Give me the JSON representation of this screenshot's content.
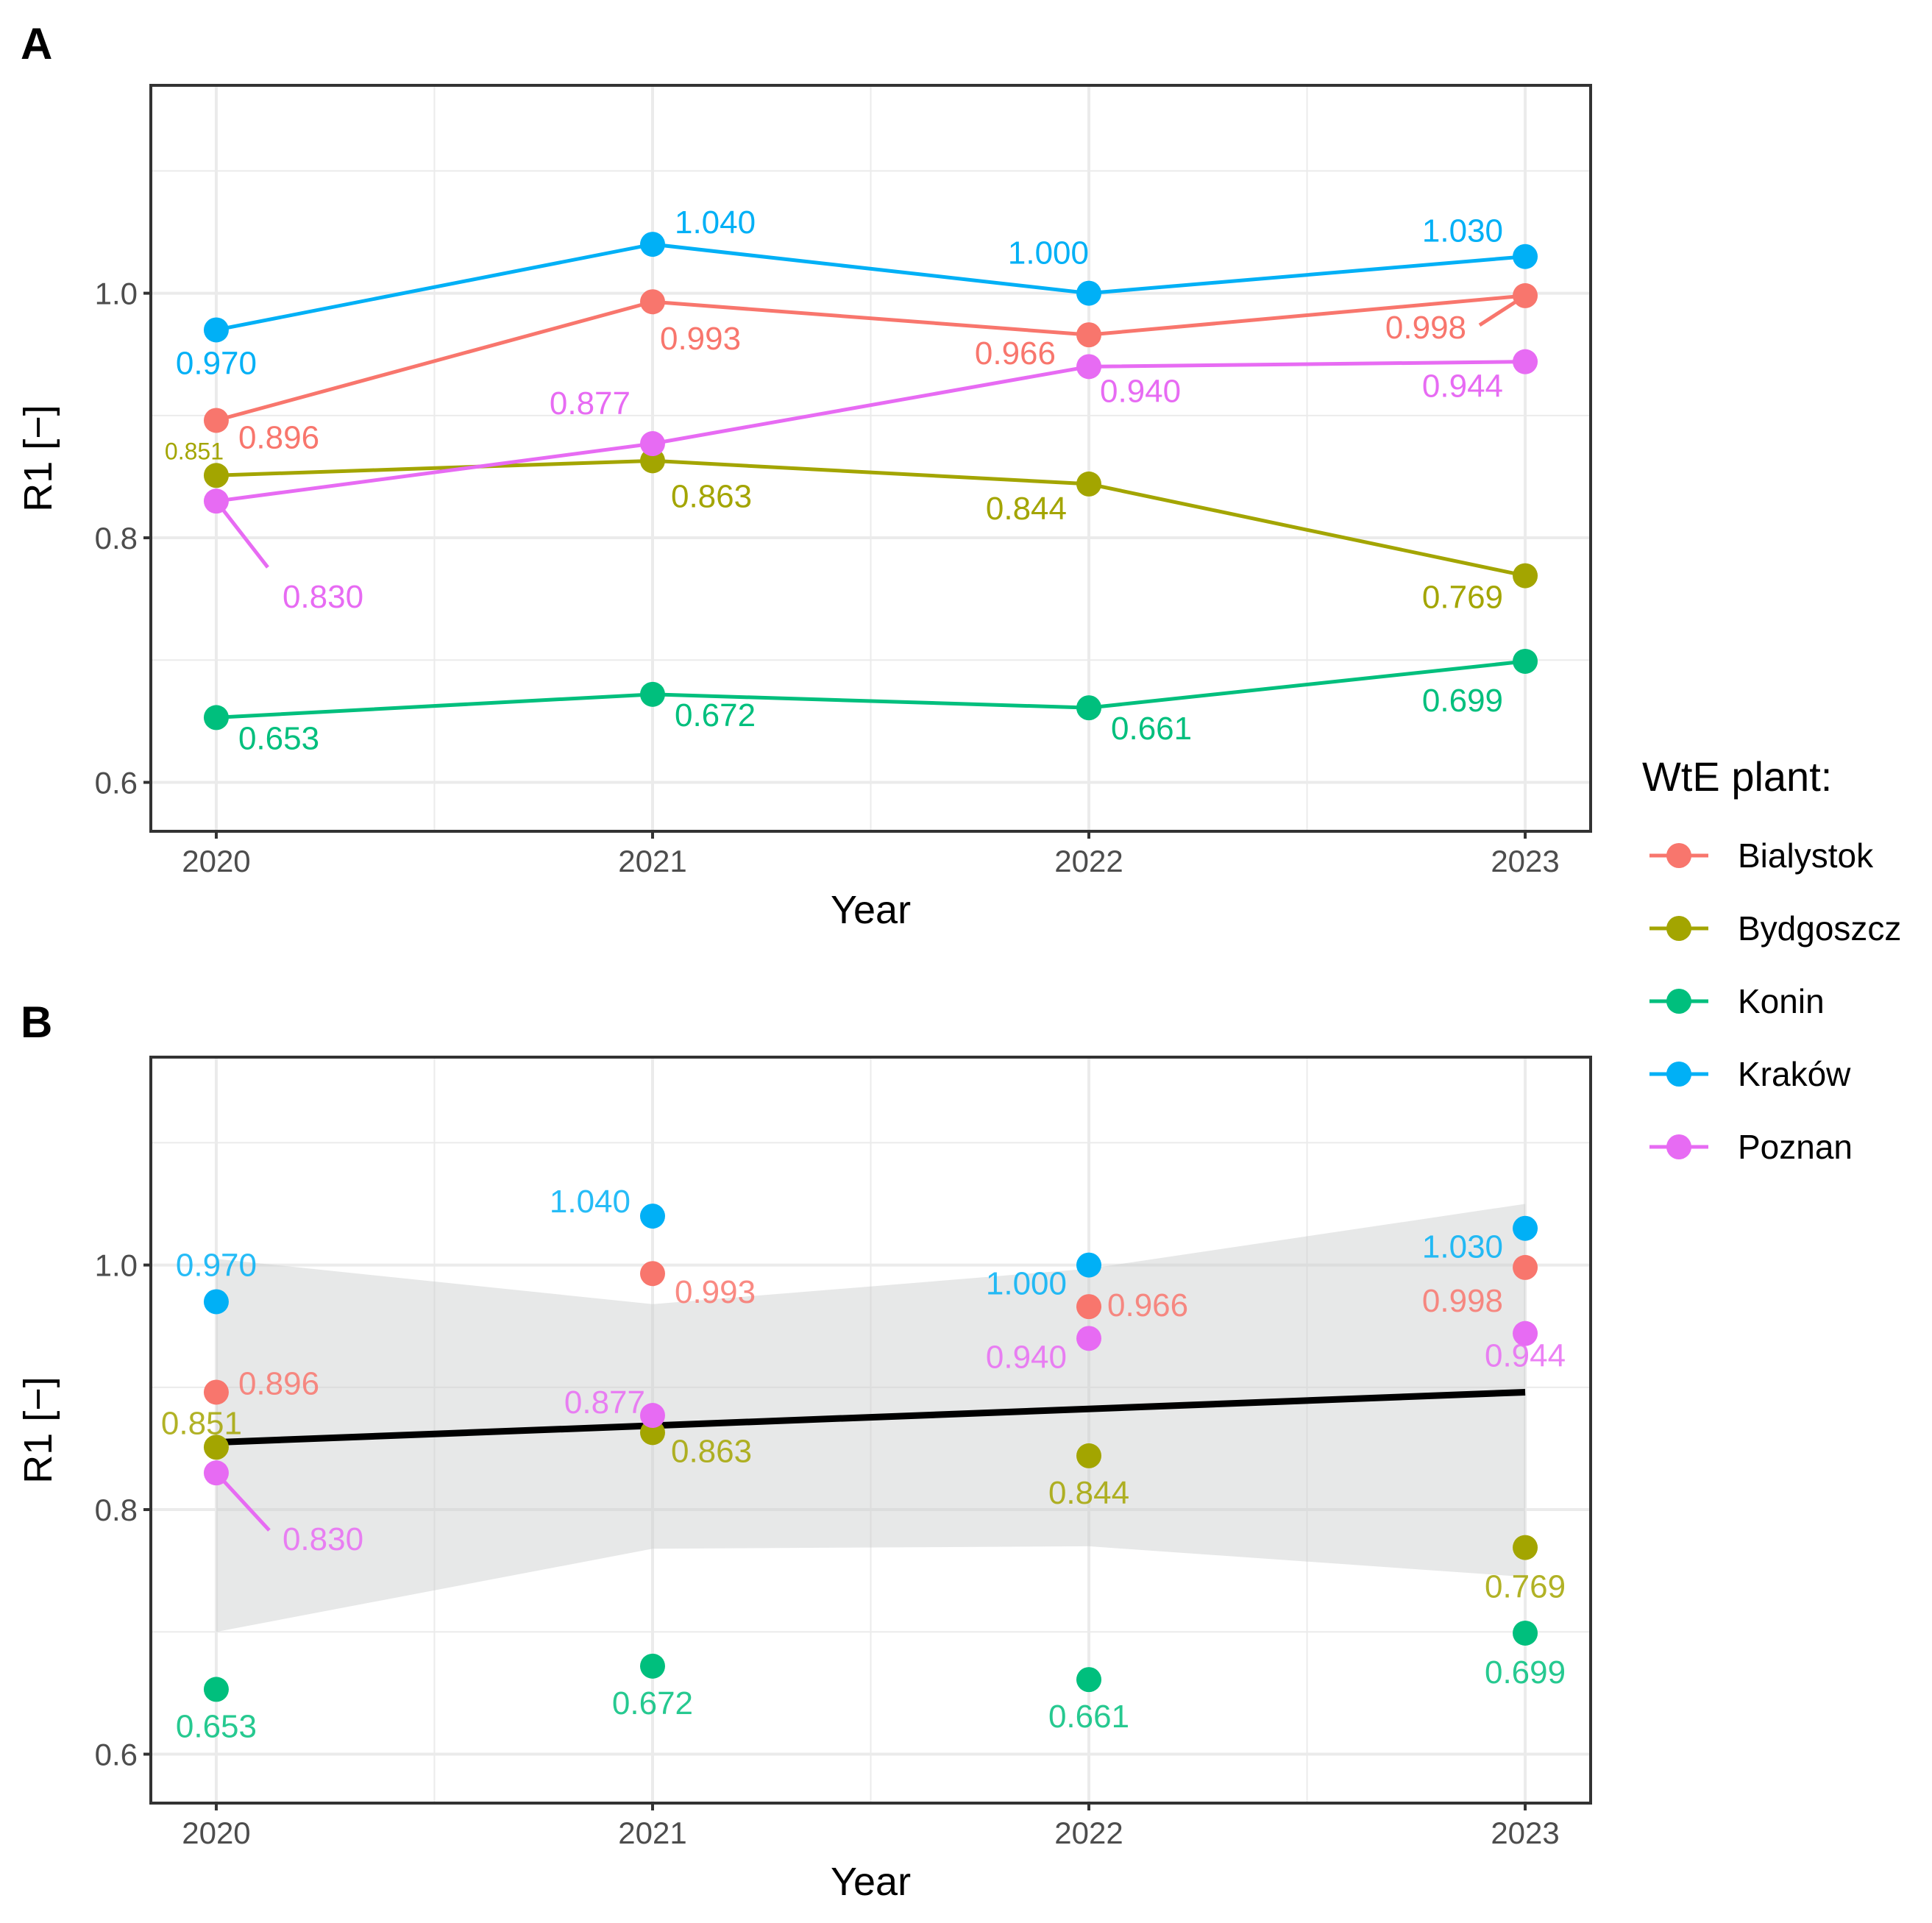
{
  "colors": {
    "Bialystok": "#F8766D",
    "Bydgoszcz": "#A3A500",
    "Konin": "#00BF7D",
    "Krakow": "#00B0F6",
    "Poznan": "#E76BF3",
    "trend": "#000000",
    "ribbon": "#C9CDCD"
  },
  "legend": {
    "title": "WtE plant:",
    "items": [
      "Bialystok",
      "Bydgoszcz",
      "Konin",
      "Kraków",
      "Poznan"
    ]
  },
  "chart_data": [
    {
      "panel": "A",
      "type": "line",
      "xlabel": "Year",
      "ylabel": "R1 [−]",
      "x": [
        2020,
        2021,
        2022,
        2023
      ],
      "xlim": [
        2019.85,
        2023.15
      ],
      "ylim": [
        0.56,
        1.17
      ],
      "yticks": [
        "0.6",
        "0.8",
        "1.0"
      ],
      "xticks": [
        "2020",
        "2021",
        "2022",
        "2023"
      ],
      "grid": true,
      "series": [
        {
          "name": "Bialystok",
          "values": [
            0.896,
            0.993,
            0.966,
            0.998
          ],
          "labels": [
            "0.896",
            "0.993",
            "0.966",
            "0.998"
          ]
        },
        {
          "name": "Bydgoszcz",
          "values": [
            0.851,
            0.863,
            0.844,
            0.769
          ],
          "labels": [
            "0.851",
            "0.863",
            "0.844",
            "0.769"
          ]
        },
        {
          "name": "Konin",
          "values": [
            0.653,
            0.672,
            0.661,
            0.699
          ],
          "labels": [
            "0.653",
            "0.672",
            "0.661",
            "0.699"
          ]
        },
        {
          "name": "Kraków",
          "values": [
            0.97,
            1.04,
            1.0,
            1.03
          ],
          "labels": [
            "0.970",
            "1.040",
            "1.000",
            "1.030"
          ]
        },
        {
          "name": "Poznan",
          "values": [
            0.83,
            0.877,
            0.94,
            0.944
          ],
          "labels": [
            "0.830",
            "0.877",
            "0.940",
            "0.944"
          ]
        }
      ]
    },
    {
      "panel": "B",
      "type": "scatter",
      "xlabel": "Year",
      "ylabel": "R1 [−]",
      "x": [
        2020,
        2021,
        2022,
        2023
      ],
      "xlim": [
        2019.85,
        2023.15
      ],
      "ylim": [
        0.56,
        1.17
      ],
      "yticks": [
        "0.6",
        "0.8",
        "1.0"
      ],
      "xticks": [
        "2020",
        "2021",
        "2022",
        "2023"
      ],
      "grid": true,
      "trend": {
        "x": [
          2020,
          2023
        ],
        "y": [
          0.855,
          0.896
        ]
      },
      "ribbon": {
        "x": [
          2020,
          2021,
          2022,
          2023
        ],
        "upper": [
          1.005,
          0.968,
          0.997,
          1.05
        ],
        "lower": [
          0.7,
          0.768,
          0.77,
          0.745
        ]
      },
      "series": [
        {
          "name": "Bialystok",
          "values": [
            0.896,
            0.993,
            0.966,
            0.998
          ],
          "labels": [
            "0.896",
            "0.993",
            "0.966",
            "0.998"
          ]
        },
        {
          "name": "Bydgoszcz",
          "values": [
            0.851,
            0.863,
            0.844,
            0.769
          ],
          "labels": [
            "0.851",
            "0.863",
            "0.844",
            "0.769"
          ]
        },
        {
          "name": "Konin",
          "values": [
            0.653,
            0.672,
            0.661,
            0.699
          ],
          "labels": [
            "0.653",
            "0.672",
            "0.661",
            "0.699"
          ]
        },
        {
          "name": "Kraków",
          "values": [
            0.97,
            1.04,
            1.0,
            1.03
          ],
          "labels": [
            "0.970",
            "1.040",
            "1.000",
            "1.030"
          ]
        },
        {
          "name": "Poznan",
          "values": [
            0.83,
            0.877,
            0.94,
            0.944
          ],
          "labels": [
            "0.830",
            "0.877",
            "0.940",
            "0.944"
          ]
        }
      ]
    }
  ]
}
